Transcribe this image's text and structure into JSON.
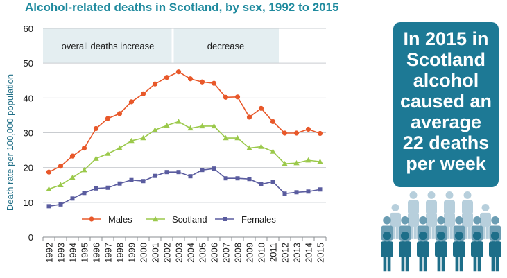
{
  "colors": {
    "title": "#1f8a9e",
    "males": "#e8582a",
    "scotland": "#9bc94b",
    "females": "#5a5c9f",
    "band": "#e4eef1",
    "callout_bg": "#1d7995",
    "person_dark": "#1d6e89",
    "person_mid": "#6b9db3",
    "person_light": "#b7cfdc"
  },
  "callout": {
    "text": "In 2015 in Scotland alcohol caused an average 22 deaths per week"
  },
  "icons": [
    "people-crowd-icon"
  ],
  "chart_data": {
    "type": "line",
    "title": "Alcohol-related deaths in Scotland, by sex, 1992 to 2015",
    "xlabel": "",
    "ylabel": "Death rate per 100,000 population",
    "ylim": [
      0,
      60
    ],
    "yticks": [
      0,
      10,
      20,
      30,
      40,
      50,
      60
    ],
    "grid": true,
    "legend_position": "bottom-center",
    "x": [
      "1992",
      "1993",
      "1994",
      "1995",
      "1996",
      "1997",
      "1998",
      "1999",
      "2000",
      "2001",
      "2002",
      "2003",
      "2004",
      "2005",
      "2006",
      "2007",
      "2008",
      "2009",
      "2010",
      "2011",
      "2012",
      "2013",
      "2014",
      "2015"
    ],
    "series": [
      {
        "name": "Males",
        "color": "#e8582a",
        "marker": "circle",
        "values": [
          18.7,
          20.4,
          23.3,
          25.6,
          31.2,
          34.1,
          35.5,
          38.9,
          41.2,
          44.0,
          45.9,
          47.5,
          45.5,
          44.6,
          44.2,
          40.2,
          40.3,
          34.5,
          37.0,
          33.2,
          29.9,
          29.9,
          31.0,
          29.8
        ]
      },
      {
        "name": "Scotland",
        "color": "#9bc94b",
        "marker": "triangle",
        "values": [
          13.8,
          15.0,
          17.1,
          19.3,
          22.6,
          24.0,
          25.6,
          27.7,
          28.5,
          30.8,
          32.1,
          33.2,
          31.3,
          31.9,
          31.9,
          28.5,
          28.5,
          25.6,
          26.0,
          24.6,
          21.1,
          21.3,
          22.1,
          21.7
        ]
      },
      {
        "name": "Females",
        "color": "#5a5c9f",
        "marker": "square",
        "values": [
          8.9,
          9.4,
          11.1,
          12.7,
          14.0,
          14.2,
          15.4,
          16.4,
          16.1,
          17.6,
          18.7,
          18.7,
          17.5,
          19.3,
          19.7,
          16.9,
          16.9,
          16.7,
          15.2,
          15.9,
          12.5,
          12.9,
          13.1,
          13.7
        ]
      }
    ],
    "annotations": [
      {
        "text": "overall deaths increase",
        "x_start": "1992",
        "x_end": "2003"
      },
      {
        "text": "decrease",
        "x_start": "2003",
        "x_end": "2012"
      }
    ]
  }
}
